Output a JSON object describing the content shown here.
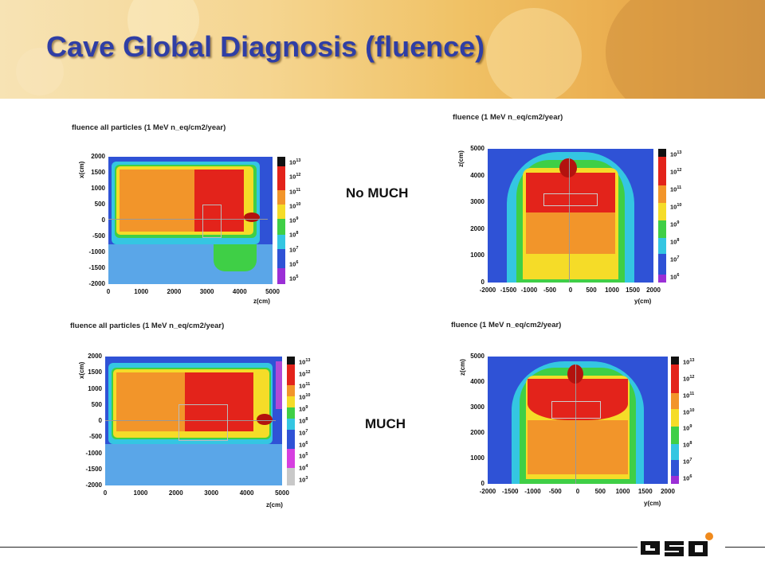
{
  "slide": {
    "title": "Cave Global Diagnosis  (fluence)",
    "label_top": "No MUCH",
    "label_bottom": "MUCH",
    "logo_text": "GSI"
  },
  "panels": [
    {
      "id": "tl",
      "title": "fluence all particles (1 MeV n_eq/cm2/year)",
      "ylabel": "x(cm)",
      "xlabel": "z(cm)",
      "yticks": [
        "2000",
        "1500",
        "1000",
        "500",
        "0",
        "-500",
        "-1000",
        "-1500",
        "-2000"
      ],
      "xticks": [
        "0",
        "1000",
        "2000",
        "3000",
        "4000",
        "5000"
      ],
      "cbar_exponents": [
        "13",
        "12",
        "11",
        "10",
        "9",
        "8",
        "7",
        "6",
        "5"
      ]
    },
    {
      "id": "tr",
      "title": "fluence (1 MeV n_eq/cm2/year)",
      "ylabel": "z(cm)",
      "xlabel": "y(cm)",
      "yticks": [
        "5000",
        "4000",
        "3000",
        "2000",
        "1000",
        "0"
      ],
      "xticks": [
        "-2000",
        "-1500",
        "-1000",
        "-500",
        "0",
        "500",
        "1000",
        "1500",
        "2000"
      ],
      "cbar_exponents": [
        "13",
        "12",
        "11",
        "10",
        "9",
        "8",
        "7",
        "6"
      ]
    },
    {
      "id": "bl",
      "title": "fluence all particles (1 MeV n_eq/cm2/year)",
      "ylabel": "x(cm)",
      "xlabel": "z(cm)",
      "yticks": [
        "2000",
        "1500",
        "1000",
        "500",
        "0",
        "-500",
        "-1000",
        "-1500",
        "-2000"
      ],
      "xticks": [
        "0",
        "1000",
        "2000",
        "3000",
        "4000",
        "5000"
      ],
      "cbar_exponents": [
        "13",
        "12",
        "11",
        "10",
        "9",
        "8",
        "7",
        "6",
        "5",
        "4",
        "3"
      ]
    },
    {
      "id": "br",
      "title": "fluence (1 MeV n_eq/cm2/year)",
      "ylabel": "z(cm)",
      "xlabel": "y(cm)",
      "yticks": [
        "5000",
        "4000",
        "3000",
        "2000",
        "1000",
        "0"
      ],
      "xticks": [
        "-2000",
        "-1500",
        "-1000",
        "-500",
        "0",
        "500",
        "1000",
        "1500",
        "2000"
      ],
      "cbar_exponents": [
        "13",
        "12",
        "11",
        "10",
        "9",
        "8",
        "7",
        "6"
      ]
    }
  ],
  "colors": {
    "title": "#2f3ea5",
    "red": "#e3231b",
    "orange": "#f2952a",
    "yellow": "#f5dc28",
    "green": "#3fcf46",
    "cyan": "#34c6e2",
    "light_blue": "#5aa6e8",
    "blue": "#2f52d6"
  }
}
